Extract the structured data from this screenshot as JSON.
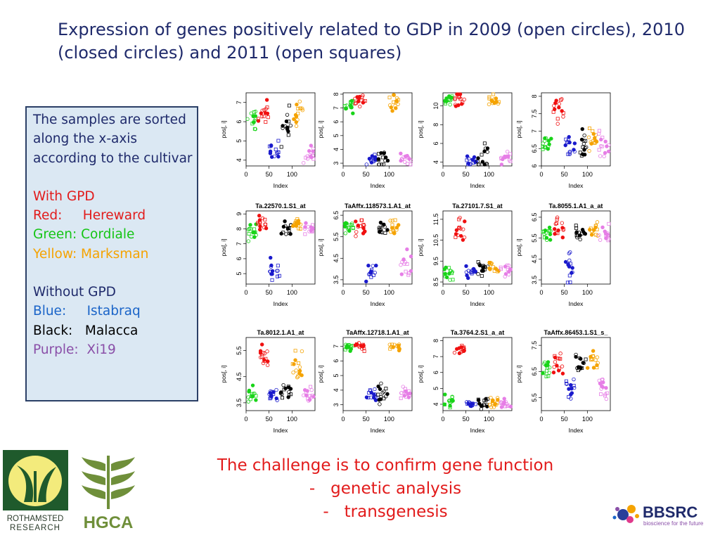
{
  "title": "Expression of genes positively related to GDP in 2009 (open circles), 2010 (closed circles) and 2011 (open squares)",
  "legend": {
    "intro": "The samples are sorted along the x-axis according to the cultivar",
    "with_gpd": "With GPD",
    "red": "Red:     Hereward",
    "green": "Green: Cordiale",
    "yellow": "Yellow: Marksman",
    "without_gpd": "Without GPD",
    "blue": "Blue:     Istabraq",
    "black": "Black:   Malacca",
    "purple": "Purple:  Xi19"
  },
  "challenge": {
    "line1": "The challenge is to confirm gene function",
    "line2": "-   genetic analysis",
    "line3": "-   transgenesis"
  },
  "logos": {
    "rothamsted_line1": "ROTHAMSTED",
    "rothamsted_line2": "RESEARCH",
    "hgca": "HGCA",
    "bbsrc": "BBSRC",
    "bbsrc_tagline": "bioscience for the future"
  },
  "colors": {
    "title": "#1f2a6b",
    "red": "#e21b1b",
    "green": "#15c515",
    "yellow": "#f5a300",
    "blue": "#1a64c8",
    "black": "#000000",
    "purple": "#8a4fa8",
    "plot_red": "#f01010",
    "plot_green": "#18d418",
    "plot_blue": "#1a1acc",
    "plot_black": "#000000",
    "plot_orange": "#f5a300",
    "plot_violet": "#e67ee6"
  },
  "chart_data": [
    {
      "type": "scatter",
      "title": "",
      "xlabel": "Index",
      "ylabel": "pos[, i]",
      "xlim": [
        0,
        150
      ],
      "xticks": [
        0,
        50,
        100
      ],
      "ylim": [
        3.7,
        7.5
      ],
      "yticks": [
        4,
        5,
        6,
        7
      ],
      "groups": [
        [
          6.2,
          0.6
        ],
        [
          6.5,
          0.4
        ],
        [
          4.4,
          0.35
        ],
        [
          5.9,
          0.7
        ],
        [
          6.4,
          0.4
        ],
        [
          4.3,
          0.35
        ]
      ]
    },
    {
      "type": "scatter",
      "title": "",
      "xlabel": "Index",
      "ylabel": "pos[, i]",
      "xlim": [
        0,
        150
      ],
      "xticks": [
        0,
        50,
        100
      ],
      "ylim": [
        2.8,
        8.1
      ],
      "yticks": [
        3,
        4,
        5,
        6,
        7,
        8
      ],
      "groups": [
        [
          7.2,
          0.4
        ],
        [
          7.6,
          0.3
        ],
        [
          3.2,
          0.3
        ],
        [
          3.3,
          0.5
        ],
        [
          7.3,
          0.5
        ],
        [
          3.3,
          0.3
        ]
      ]
    },
    {
      "type": "scatter",
      "title": "",
      "xlabel": "Index",
      "ylabel": "pos[, i]",
      "xlim": [
        0,
        150
      ],
      "xticks": [
        0,
        50,
        100
      ],
      "ylim": [
        3.6,
        11.4
      ],
      "yticks": [
        4,
        6,
        8,
        10
      ],
      "groups": [
        [
          10.7,
          0.4
        ],
        [
          10.6,
          0.5
        ],
        [
          4.2,
          0.4
        ],
        [
          4.6,
          0.9
        ],
        [
          10.6,
          0.4
        ],
        [
          4.4,
          0.5
        ]
      ]
    },
    {
      "type": "scatter",
      "title": "",
      "xlabel": "Index",
      "ylabel": "pos[, i]",
      "xlim": [
        0,
        150
      ],
      "xticks": [
        0,
        50,
        100
      ],
      "ylim": [
        6.0,
        8.1
      ],
      "yticks": [
        6.0,
        6.5,
        7.0,
        7.5,
        8.0
      ],
      "groups": [
        [
          6.6,
          0.2
        ],
        [
          7.6,
          0.25
        ],
        [
          6.6,
          0.3
        ],
        [
          6.6,
          0.3
        ],
        [
          6.7,
          0.25
        ],
        [
          6.6,
          0.25
        ]
      ]
    },
    {
      "type": "scatter",
      "title": "Ta.22570.1.S1_at",
      "xlabel": "Index",
      "ylabel": "pos[, i]",
      "xlim": [
        0,
        150
      ],
      "xticks": [
        0,
        50,
        100
      ],
      "ylim": [
        4.3,
        9.2
      ],
      "yticks": [
        5,
        6,
        7,
        8,
        9
      ],
      "groups": [
        [
          7.7,
          0.4
        ],
        [
          8.5,
          0.4
        ],
        [
          5.2,
          0.5
        ],
        [
          8.0,
          0.4
        ],
        [
          8.2,
          0.4
        ],
        [
          7.9,
          0.3
        ]
      ]
    },
    {
      "type": "scatter",
      "title": "TaAffx.118573.1.A1_at",
      "xlabel": "Index",
      "ylabel": "pos[, i]",
      "xlim": [
        0,
        150
      ],
      "xticks": [
        0,
        50,
        100
      ],
      "ylim": [
        3.3,
        6.7
      ],
      "yticks": [
        3.5,
        4.5,
        5.5,
        6.5
      ],
      "groups": [
        [
          5.9,
          0.3
        ],
        [
          6.0,
          0.4
        ],
        [
          3.8,
          0.3
        ],
        [
          5.8,
          0.3
        ],
        [
          5.9,
          0.3
        ],
        [
          4.3,
          0.4
        ]
      ]
    },
    {
      "type": "scatter",
      "title": "Ta.27101.7.S1_at",
      "xlabel": "Index",
      "ylabel": "pos[, i]",
      "xlim": [
        0,
        150
      ],
      "xticks": [
        0,
        50,
        100
      ],
      "ylim": [
        8.4,
        11.9
      ],
      "yticks": [
        8.5,
        9.5,
        10.5,
        11.5
      ],
      "groups": [
        [
          9.0,
          0.3
        ],
        [
          10.8,
          0.6
        ],
        [
          9.1,
          0.3
        ],
        [
          9.2,
          0.3
        ],
        [
          9.2,
          0.3
        ],
        [
          9.0,
          0.3
        ]
      ]
    },
    {
      "type": "scatter",
      "title": "Ta.8055.1.A1_a_at",
      "xlabel": "Index",
      "ylabel": "pos[, i]",
      "xlim": [
        0,
        150
      ],
      "xticks": [
        0,
        50,
        100
      ],
      "ylim": [
        3.3,
        6.8
      ],
      "yticks": [
        3.5,
        4.5,
        5.5,
        6.5
      ],
      "groups": [
        [
          5.6,
          0.3
        ],
        [
          6.0,
          0.4
        ],
        [
          4.2,
          0.6
        ],
        [
          5.8,
          0.3
        ],
        [
          5.9,
          0.3
        ],
        [
          5.7,
          0.3
        ]
      ]
    },
    {
      "type": "scatter",
      "title": "Ta.8012.1.A1_at",
      "xlabel": "Index",
      "ylabel": "pos[, i]",
      "xlim": [
        0,
        150
      ],
      "xticks": [
        0,
        50,
        100
      ],
      "ylim": [
        3.2,
        6.0
      ],
      "yticks": [
        3.5,
        4.5,
        5.5
      ],
      "groups": [
        [
          3.8,
          0.2
        ],
        [
          5.3,
          0.4
        ],
        [
          3.8,
          0.2
        ],
        [
          3.9,
          0.2
        ],
        [
          5.0,
          0.4
        ],
        [
          3.8,
          0.2
        ]
      ]
    },
    {
      "type": "scatter",
      "title": "TaAffx.12718.1.A1_at",
      "xlabel": "Index",
      "ylabel": "pos[, i]",
      "xlim": [
        0,
        150
      ],
      "xticks": [
        0,
        50,
        100
      ],
      "ylim": [
        2.6,
        7.6
      ],
      "yticks": [
        3,
        4,
        5,
        6,
        7
      ],
      "groups": [
        [
          7.0,
          0.2
        ],
        [
          7.0,
          0.2
        ],
        [
          3.8,
          0.4
        ],
        [
          3.9,
          0.5
        ],
        [
          6.9,
          0.2
        ],
        [
          3.8,
          0.4
        ]
      ]
    },
    {
      "type": "scatter",
      "title": "Ta.3764.2.S1_a_at",
      "xlabel": "Index",
      "ylabel": "pos[, i]",
      "xlim": [
        0,
        150
      ],
      "xticks": [
        0,
        50,
        100
      ],
      "ylim": [
        3.6,
        8.2
      ],
      "yticks": [
        4,
        5,
        6,
        7,
        8
      ],
      "groups": [
        [
          4.2,
          0.3
        ],
        [
          7.4,
          0.3
        ],
        [
          4.0,
          0.2
        ],
        [
          4.1,
          0.3
        ],
        [
          4.1,
          0.3
        ],
        [
          4.0,
          0.2
        ]
      ]
    },
    {
      "type": "scatter",
      "title": "TaAffx.86453.1.S1_s_",
      "xlabel": "Index",
      "ylabel": "pos[, i]",
      "xlim": [
        0,
        150
      ],
      "xticks": [
        0,
        50,
        100
      ],
      "ylim": [
        5.0,
        7.8
      ],
      "yticks": [
        5.5,
        6.5,
        7.5
      ],
      "groups": [
        [
          6.6,
          0.3
        ],
        [
          6.8,
          0.3
        ],
        [
          5.9,
          0.3
        ],
        [
          6.8,
          0.3
        ],
        [
          6.8,
          0.3
        ],
        [
          5.9,
          0.4
        ]
      ]
    }
  ]
}
